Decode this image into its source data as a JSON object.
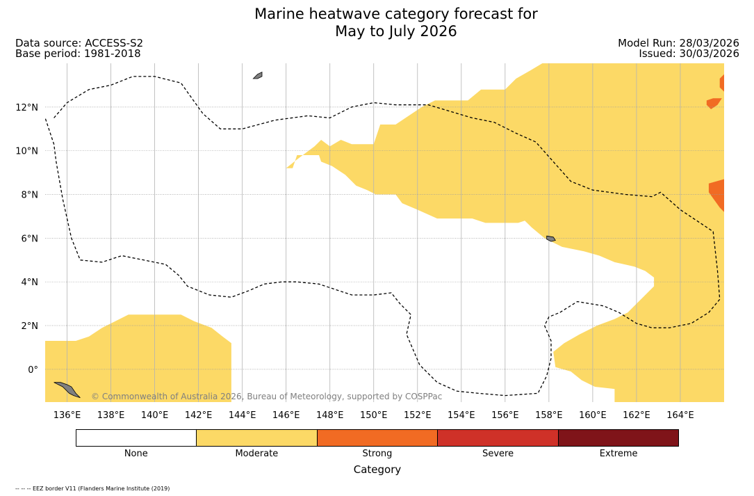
{
  "header": {
    "title_line1": "Marine heatwave category forecast for",
    "title_line2": "May to July 2026",
    "data_source": "Data source: ACCESS-S2",
    "base_period": "Base period: 1981-2018",
    "model_run": "Model Run: 28/03/2026",
    "issued": "Issued: 30/03/2026"
  },
  "map": {
    "lon_range": [
      135,
      166
    ],
    "lat_range": [
      -1.5,
      14
    ],
    "x_ticks": [
      {
        "value": 136,
        "label": "136°E"
      },
      {
        "value": 138,
        "label": "138°E"
      },
      {
        "value": 140,
        "label": "140°E"
      },
      {
        "value": 142,
        "label": "142°E"
      },
      {
        "value": 144,
        "label": "144°E"
      },
      {
        "value": 146,
        "label": "146°E"
      },
      {
        "value": 148,
        "label": "148°E"
      },
      {
        "value": 150,
        "label": "150°E"
      },
      {
        "value": 152,
        "label": "152°E"
      },
      {
        "value": 154,
        "label": "154°E"
      },
      {
        "value": 156,
        "label": "156°E"
      },
      {
        "value": 158,
        "label": "158°E"
      },
      {
        "value": 160,
        "label": "160°E"
      },
      {
        "value": 162,
        "label": "162°E"
      },
      {
        "value": 164,
        "label": "164°E"
      }
    ],
    "y_ticks": [
      {
        "value": 12,
        "label": "12°N"
      },
      {
        "value": 10,
        "label": "10°N"
      },
      {
        "value": 8,
        "label": "8°N"
      },
      {
        "value": 6,
        "label": "6°N"
      },
      {
        "value": 4,
        "label": "4°N"
      },
      {
        "value": 2,
        "label": "2°N"
      },
      {
        "value": 0,
        "label": "0°"
      }
    ],
    "regions": [
      {
        "category": "Moderate",
        "points": [
          [
            135,
            1.3
          ],
          [
            136.4,
            1.3
          ],
          [
            137,
            1.5
          ],
          [
            137.6,
            1.9
          ],
          [
            138.2,
            2.2
          ],
          [
            138.8,
            2.5
          ],
          [
            141.2,
            2.5
          ],
          [
            141.8,
            2.2
          ],
          [
            142.6,
            1.9
          ],
          [
            143.1,
            1.5
          ],
          [
            143.5,
            1.2
          ],
          [
            143.5,
            -1.5
          ],
          [
            135,
            -1.5
          ]
        ]
      },
      {
        "category": "Moderate",
        "points": [
          [
            146,
            9.2
          ],
          [
            146.5,
            9.6
          ],
          [
            146.9,
            9.9
          ],
          [
            147.3,
            10.2
          ],
          [
            147.6,
            10.5
          ],
          [
            148,
            10.2
          ],
          [
            148.5,
            10.5
          ],
          [
            149,
            10.3
          ],
          [
            150,
            10.3
          ],
          [
            150.3,
            11.2
          ],
          [
            151,
            11.2
          ],
          [
            151.6,
            11.6
          ],
          [
            152.2,
            12
          ],
          [
            152.8,
            12.3
          ],
          [
            154.3,
            12.3
          ],
          [
            154.9,
            12.8
          ],
          [
            156,
            12.8
          ],
          [
            156.5,
            13.3
          ],
          [
            157.2,
            13.7
          ],
          [
            157.7,
            14
          ],
          [
            166,
            14
          ],
          [
            166,
            -1.5
          ],
          [
            161,
            -1.5
          ],
          [
            161,
            -0.9
          ],
          [
            160.1,
            -0.8
          ],
          [
            159.5,
            -0.5
          ],
          [
            159,
            -0.1
          ],
          [
            158.3,
            0.1
          ],
          [
            158.2,
            0.8
          ],
          [
            158.7,
            1.2
          ],
          [
            159.4,
            1.6
          ],
          [
            160.2,
            2
          ],
          [
            161,
            2.3
          ],
          [
            161.6,
            2.6
          ],
          [
            162,
            3
          ],
          [
            162.5,
            3.5
          ],
          [
            162.8,
            3.8
          ],
          [
            162.8,
            4.2
          ],
          [
            162.4,
            4.5
          ],
          [
            161.9,
            4.7
          ],
          [
            161,
            4.9
          ],
          [
            160.3,
            5.2
          ],
          [
            159.6,
            5.4
          ],
          [
            158.6,
            5.6
          ],
          [
            157.8,
            6
          ],
          [
            157.2,
            6.5
          ],
          [
            156.9,
            6.8
          ],
          [
            156.6,
            6.7
          ],
          [
            155.1,
            6.7
          ],
          [
            154.5,
            6.9
          ],
          [
            152.9,
            6.9
          ],
          [
            152,
            7.3
          ],
          [
            151.3,
            7.6
          ],
          [
            151,
            8
          ],
          [
            150.1,
            8
          ],
          [
            149.7,
            8.2
          ],
          [
            149.2,
            8.4
          ],
          [
            148.7,
            8.9
          ],
          [
            148.1,
            9.3
          ],
          [
            147.6,
            9.5
          ],
          [
            147.5,
            9.8
          ],
          [
            146.5,
            9.8
          ],
          [
            146.3,
            9.2
          ]
        ]
      },
      {
        "category": "Strong",
        "points": [
          [
            166,
            8.7
          ],
          [
            165.3,
            8.5
          ],
          [
            165.3,
            8.1
          ],
          [
            165.8,
            7.4
          ],
          [
            166,
            7.2
          ]
        ]
      },
      {
        "category": "Strong",
        "points": [
          [
            165.9,
            12.4
          ],
          [
            165.7,
            12.1
          ],
          [
            165.4,
            11.9
          ],
          [
            165.2,
            12.1
          ],
          [
            165.2,
            12.3
          ],
          [
            165.5,
            12.4
          ]
        ]
      },
      {
        "category": "Strong",
        "points": [
          [
            166,
            13.5
          ],
          [
            165.8,
            13.3
          ],
          [
            165.8,
            12.9
          ],
          [
            166,
            12.7
          ]
        ]
      }
    ],
    "eez_lines": [
      [
        [
          135.4,
          11.5
        ],
        [
          136,
          12.2
        ],
        [
          137,
          12.8
        ],
        [
          138,
          13
        ],
        [
          139,
          13.4
        ],
        [
          140,
          13.4
        ],
        [
          141.2,
          13.1
        ],
        [
          142.2,
          11.7
        ],
        [
          143,
          11
        ],
        [
          144,
          11
        ],
        [
          145.5,
          11.4
        ],
        [
          147,
          11.6
        ],
        [
          148,
          11.5
        ],
        [
          149,
          12
        ],
        [
          150,
          12.2
        ],
        [
          151,
          12.1
        ],
        [
          152.5,
          12.1
        ],
        [
          153.5,
          11.8
        ],
        [
          154.5,
          11.5
        ],
        [
          155.5,
          11.3
        ],
        [
          156.5,
          10.8
        ],
        [
          157.4,
          10.4
        ],
        [
          158.2,
          9.5
        ],
        [
          159,
          8.6
        ],
        [
          160,
          8.2
        ],
        [
          161.5,
          8
        ],
        [
          162.7,
          7.9
        ],
        [
          163.1,
          8.1
        ],
        [
          164,
          7.3
        ],
        [
          165.5,
          6.3
        ],
        [
          165.7,
          4.5
        ],
        [
          165.8,
          3.2
        ],
        [
          165.3,
          2.6
        ],
        [
          164.5,
          2.1
        ],
        [
          163.5,
          1.9
        ],
        [
          162.7,
          1.9
        ],
        [
          162,
          2.1
        ],
        [
          161.2,
          2.6
        ],
        [
          160.5,
          2.9
        ],
        [
          159.3,
          3.1
        ],
        [
          158.5,
          2.6
        ],
        [
          158,
          2.4
        ],
        [
          157.8,
          2
        ],
        [
          158.1,
          1.3
        ],
        [
          158.1,
          0.5
        ],
        [
          157.9,
          -0.3
        ],
        [
          157.5,
          -1.1
        ],
        [
          156,
          -1.2
        ],
        [
          154.8,
          -1.1
        ],
        [
          153.8,
          -1
        ],
        [
          152.9,
          -0.6
        ],
        [
          152.1,
          0.2
        ],
        [
          151.5,
          1.6
        ],
        [
          151.7,
          2.5
        ],
        [
          151.2,
          3
        ],
        [
          150.8,
          3.5
        ],
        [
          150,
          3.4
        ],
        [
          149,
          3.4
        ],
        [
          147.5,
          3.9
        ],
        [
          146.5,
          4
        ],
        [
          145.8,
          4
        ],
        [
          145,
          3.9
        ],
        [
          144.3,
          3.6
        ],
        [
          143.5,
          3.3
        ],
        [
          142.5,
          3.4
        ],
        [
          141.5,
          3.8
        ],
        [
          141.1,
          4.3
        ],
        [
          140.5,
          4.8
        ],
        [
          139.5,
          5
        ],
        [
          138.5,
          5.2
        ],
        [
          137.6,
          4.9
        ],
        [
          136.6,
          5
        ],
        [
          136.2,
          6
        ],
        [
          135.8,
          7.8
        ],
        [
          135.5,
          9.5
        ],
        [
          135.4,
          10.3
        ],
        [
          135,
          11.5
        ]
      ]
    ],
    "islands": [
      [
        [
          135.4,
          -0.6
        ],
        [
          135.8,
          -0.8
        ],
        [
          136.1,
          -1.1
        ],
        [
          136.3,
          -1.2
        ],
        [
          136.6,
          -1.3
        ],
        [
          136.4,
          -1.1
        ],
        [
          136.2,
          -0.8
        ],
        [
          136,
          -0.7
        ],
        [
          135.7,
          -0.6
        ]
      ],
      [
        [
          144.5,
          13.3
        ],
        [
          144.7,
          13.5
        ],
        [
          144.9,
          13.6
        ],
        [
          144.9,
          13.4
        ],
        [
          144.7,
          13.3
        ]
      ],
      [
        [
          157.9,
          6.1
        ],
        [
          158.2,
          6.05
        ],
        [
          158.3,
          5.9
        ],
        [
          158.1,
          5.85
        ],
        [
          157.9,
          5.95
        ]
      ]
    ],
    "credit": "© Commonwealth of Australia 2026, Bureau of Meteorology, supported by COSPPac"
  },
  "legend": {
    "categories": [
      "None",
      "Moderate",
      "Strong",
      "Severe",
      "Extreme"
    ],
    "colors": {
      "None": "#ffffff",
      "Moderate": "#fcd966",
      "Strong": "#f16b23",
      "Severe": "#cf3128",
      "Extreme": "#7f1419"
    },
    "title": "Category"
  },
  "footnote": "-- -- -- EEZ border V11 (Flanders Marine Institute (2019)"
}
